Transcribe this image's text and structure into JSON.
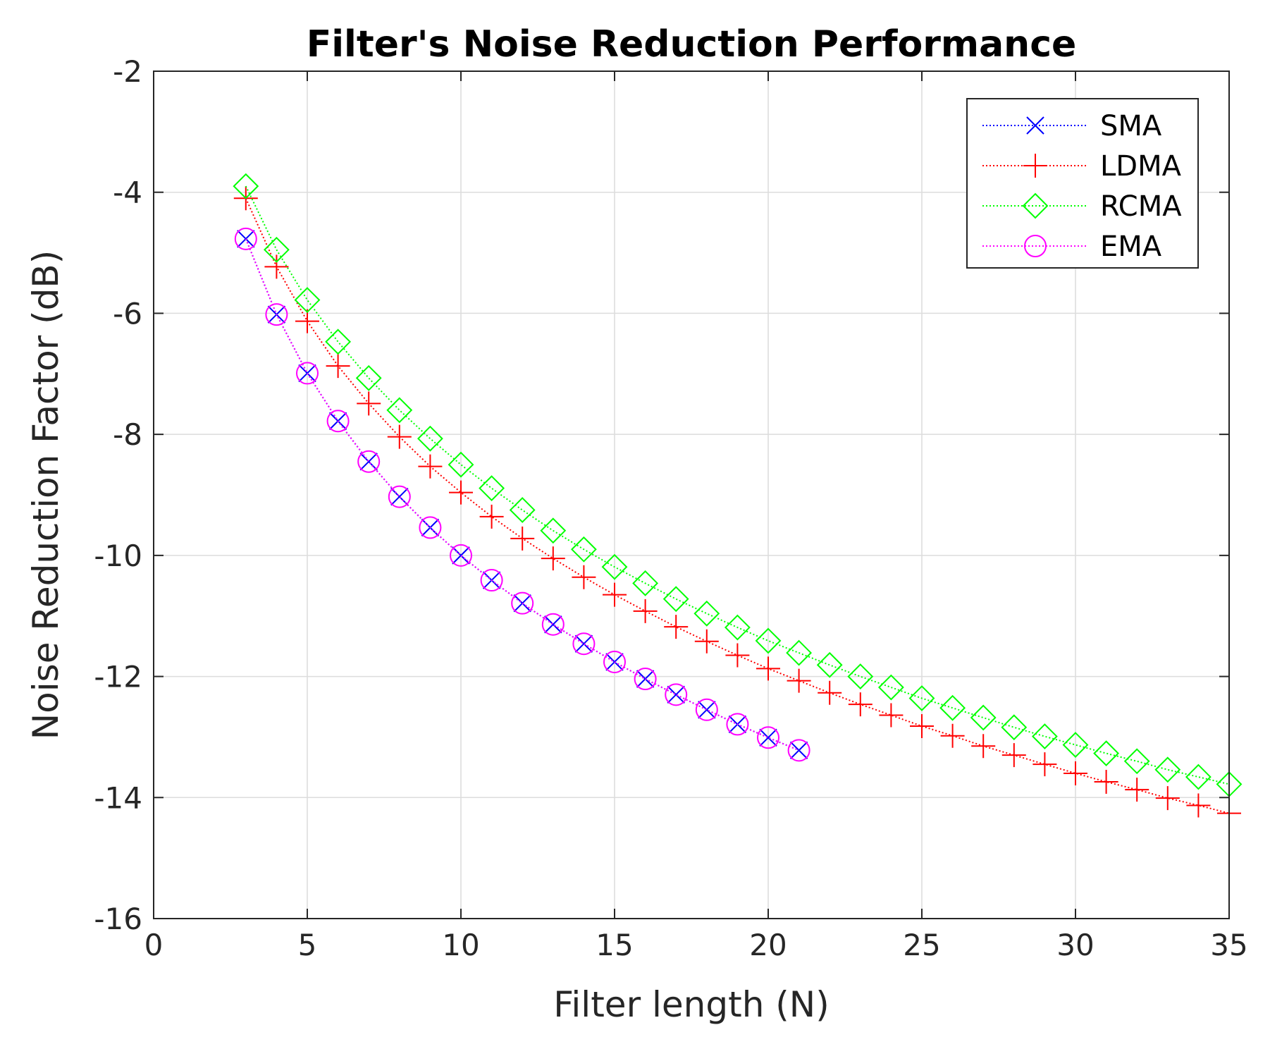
{
  "chart_data": {
    "type": "line",
    "title": "Filter's Noise Reduction Performance",
    "xlabel": "Filter length (N)",
    "ylabel": "Noise Reduction Factor (dB)",
    "xlim": [
      0,
      35
    ],
    "ylim": [
      -16,
      -2
    ],
    "xticks": [
      "0",
      "5",
      "10",
      "15",
      "20",
      "25",
      "30",
      "35"
    ],
    "yticks": [
      "-2",
      "-4",
      "-6",
      "-8",
      "-10",
      "-12",
      "-14",
      "-16"
    ],
    "grid": true,
    "legend_position": "top-right",
    "series": [
      {
        "name": "SMA",
        "color": "#0000ff",
        "marker": "x",
        "x": [
          3,
          4,
          5,
          6,
          7,
          8,
          9,
          10,
          11,
          12,
          13,
          14,
          15,
          16,
          17,
          18,
          19,
          20,
          21
        ],
        "values": [
          -4.77,
          -6.02,
          -6.99,
          -7.78,
          -8.45,
          -9.03,
          -9.54,
          -10.0,
          -10.41,
          -10.79,
          -11.14,
          -11.46,
          -11.76,
          -12.04,
          -12.3,
          -12.55,
          -12.79,
          -13.01,
          -13.22
        ]
      },
      {
        "name": "LDMA",
        "color": "#ff0000",
        "marker": "plus",
        "x": [
          3,
          4,
          5,
          6,
          7,
          8,
          9,
          10,
          11,
          12,
          13,
          14,
          15,
          16,
          17,
          18,
          19,
          20,
          21,
          22,
          23,
          24,
          25,
          26,
          27,
          28,
          29,
          30,
          31,
          32,
          33,
          34,
          35
        ],
        "values": [
          -4.1,
          -5.23,
          -6.13,
          -6.87,
          -7.49,
          -8.04,
          -8.53,
          -8.96,
          -9.36,
          -9.72,
          -10.05,
          -10.36,
          -10.65,
          -10.92,
          -11.18,
          -11.42,
          -11.65,
          -11.87,
          -12.07,
          -12.27,
          -12.46,
          -12.64,
          -12.82,
          -12.98,
          -13.15,
          -13.3,
          -13.45,
          -13.6,
          -13.74,
          -13.87,
          -14.01,
          -14.13,
          -14.26
        ]
      },
      {
        "name": "RCMA",
        "color": "#00ff00",
        "marker": "diamond",
        "x": [
          3,
          4,
          5,
          6,
          7,
          8,
          9,
          10,
          11,
          12,
          13,
          14,
          15,
          16,
          17,
          18,
          19,
          20,
          21,
          22,
          23,
          24,
          25,
          26,
          27,
          28,
          29,
          30,
          31,
          32,
          33,
          34,
          35
        ],
        "values": [
          -3.9,
          -4.95,
          -5.78,
          -6.47,
          -7.07,
          -7.6,
          -8.07,
          -8.5,
          -8.89,
          -9.25,
          -9.59,
          -9.9,
          -10.19,
          -10.46,
          -10.72,
          -10.96,
          -11.19,
          -11.41,
          -11.61,
          -11.81,
          -12.0,
          -12.18,
          -12.36,
          -12.52,
          -12.68,
          -12.84,
          -12.99,
          -13.13,
          -13.27,
          -13.4,
          -13.54,
          -13.66,
          -13.78
        ]
      },
      {
        "name": "EMA",
        "color": "#ff00ff",
        "marker": "circle",
        "x": [
          3,
          4,
          5,
          6,
          7,
          8,
          9,
          10,
          11,
          12,
          13,
          14,
          15,
          16,
          17,
          18,
          19,
          20,
          21
        ],
        "values": [
          -4.77,
          -6.02,
          -6.99,
          -7.78,
          -8.45,
          -9.03,
          -9.54,
          -10.0,
          -10.41,
          -10.79,
          -11.14,
          -11.46,
          -11.76,
          -12.04,
          -12.3,
          -12.55,
          -12.79,
          -13.01,
          -13.22
        ]
      }
    ]
  }
}
